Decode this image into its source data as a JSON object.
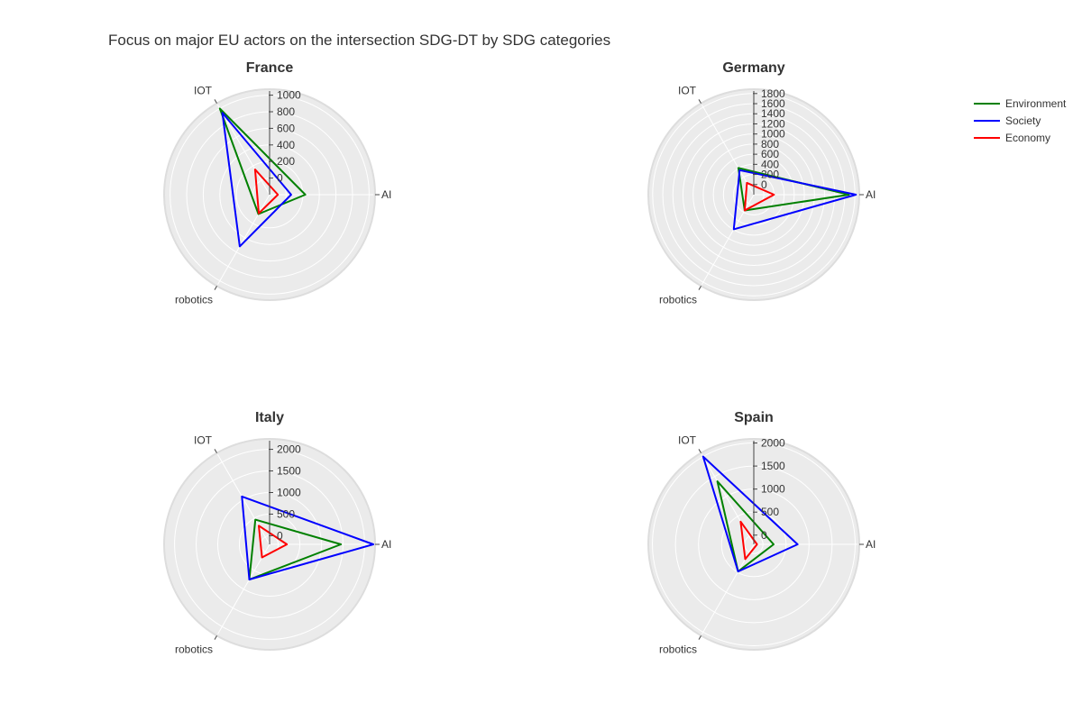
{
  "title": "Focus on major EU actors on the intersection SDG-DT by SDG categories",
  "legend": {
    "position": "top-right",
    "items": [
      {
        "name": "Environment",
        "color": "#008000"
      },
      {
        "name": "Society",
        "color": "#0000ff"
      },
      {
        "name": "Economy",
        "color": "#ff0000"
      }
    ]
  },
  "chart_data": [
    {
      "type": "radar",
      "title": "France",
      "categories": [
        "AI",
        "IOT",
        "robotics"
      ],
      "radial_range": [
        -200,
        1050
      ],
      "radial_ticks": [
        0,
        200,
        400,
        600,
        800,
        1000
      ],
      "series": [
        {
          "name": "Environment",
          "color": "#008000",
          "values": [
            230,
            1000,
            70
          ]
        },
        {
          "name": "Society",
          "color": "#0000ff",
          "values": [
            60,
            940,
            520
          ]
        },
        {
          "name": "Economy",
          "color": "#ff0000",
          "values": [
            -100,
            150,
            60
          ]
        }
      ]
    },
    {
      "type": "radar",
      "title": "Germany",
      "categories": [
        "AI",
        "IOT",
        "robotics"
      ],
      "radial_range": [
        -200,
        1850
      ],
      "radial_ticks": [
        0,
        200,
        400,
        600,
        800,
        1000,
        1200,
        1400,
        1600,
        1800
      ],
      "series": [
        {
          "name": "Environment",
          "color": "#008000",
          "values": [
            1680,
            410,
            160
          ]
        },
        {
          "name": "Society",
          "color": "#0000ff",
          "values": [
            1820,
            360,
            590
          ]
        },
        {
          "name": "Economy",
          "color": "#ff0000",
          "values": [
            200,
            70,
            160
          ]
        }
      ]
    },
    {
      "type": "radar",
      "title": "Italy",
      "categories": [
        "AI",
        "IOT",
        "robotics"
      ],
      "radial_range": [
        -200,
        2200
      ],
      "radial_ticks": [
        0,
        500,
        1000,
        1500,
        2000
      ],
      "series": [
        {
          "name": "Environment",
          "color": "#008000",
          "values": [
            1450,
            460,
            740
          ]
        },
        {
          "name": "Society",
          "color": "#0000ff",
          "values": [
            2200,
            1080,
            740
          ]
        },
        {
          "name": "Economy",
          "color": "#ff0000",
          "values": [
            200,
            300,
            150
          ]
        }
      ]
    },
    {
      "type": "radar",
      "title": "Spain",
      "categories": [
        "AI",
        "IOT",
        "robotics"
      ],
      "radial_range": [
        -200,
        2050
      ],
      "radial_ticks": [
        0,
        500,
        1000,
        1500,
        2000
      ],
      "series": [
        {
          "name": "Environment",
          "color": "#008000",
          "values": [
            230,
            1380,
            480
          ]
        },
        {
          "name": "Society",
          "color": "#0000ff",
          "values": [
            750,
            2000,
            480
          ]
        },
        {
          "name": "Economy",
          "color": "#ff0000",
          "values": [
            -130,
            370,
            170
          ]
        }
      ]
    }
  ]
}
